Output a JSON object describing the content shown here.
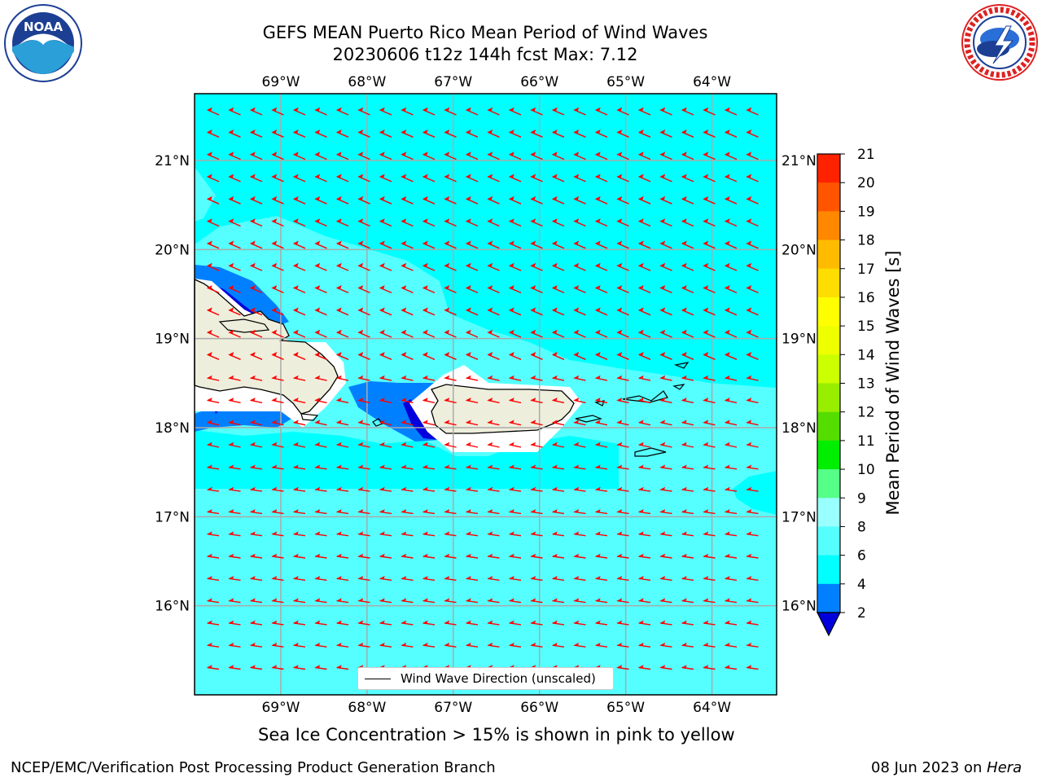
{
  "header": {
    "title_line1": "GEFS MEAN Puerto Rico Mean Period of Wind Waves",
    "title_line2": "20230606 t12z 144h fcst   Max: 7.12"
  },
  "logos": {
    "noaa": {
      "icon": "noaa-logo",
      "text": "NOAA"
    },
    "nws": {
      "icon": "nws-logo",
      "text": "NATIONAL WEATHER SERVICE"
    }
  },
  "map": {
    "lon_labels": [
      "69°W",
      "68°W",
      "67°W",
      "66°W",
      "65°W",
      "64°W"
    ],
    "lat_labels": [
      "21°N",
      "20°N",
      "19°N",
      "18°N",
      "17°N",
      "16°N"
    ],
    "lon_range": [
      -70.0,
      -63.25
    ],
    "lat_range": [
      15.0,
      21.75
    ],
    "field_colors": {
      "background": "#00ffff",
      "light": "#55ffff",
      "mid": "#0080ff",
      "dark": "#0000dd",
      "land": "#eeeedc",
      "arrow": "#ff0000",
      "grid": "#aaaaaa"
    },
    "wave_direction": "from east-southeast",
    "legend_label": "Wind Wave Direction (unscaled)"
  },
  "colorbar": {
    "label": "Mean Period of Wind Waves [s]",
    "ticks": [
      "2",
      "4",
      "6",
      "8",
      "9",
      "10",
      "11",
      "12",
      "13",
      "14",
      "15",
      "16",
      "17",
      "18",
      "19",
      "20",
      "21"
    ],
    "colors": [
      "#0080ff",
      "#00ffff",
      "#55ffff",
      "#99ffff",
      "#55ff88",
      "#00ee00",
      "#55dd00",
      "#99ee00",
      "#ccff00",
      "#eeff00",
      "#ffff00",
      "#ffdd00",
      "#ffbb00",
      "#ff8800",
      "#ff5500",
      "#ff2200"
    ],
    "extend_color": "#0000dd"
  },
  "footer": {
    "note": "Sea Ice Concentration > 15% is shown in pink to yellow",
    "branch": "NCEP/EMC/Verification Post Processing Product Generation Branch",
    "date": "08 Jun 2023 on",
    "machine": "Hera"
  }
}
